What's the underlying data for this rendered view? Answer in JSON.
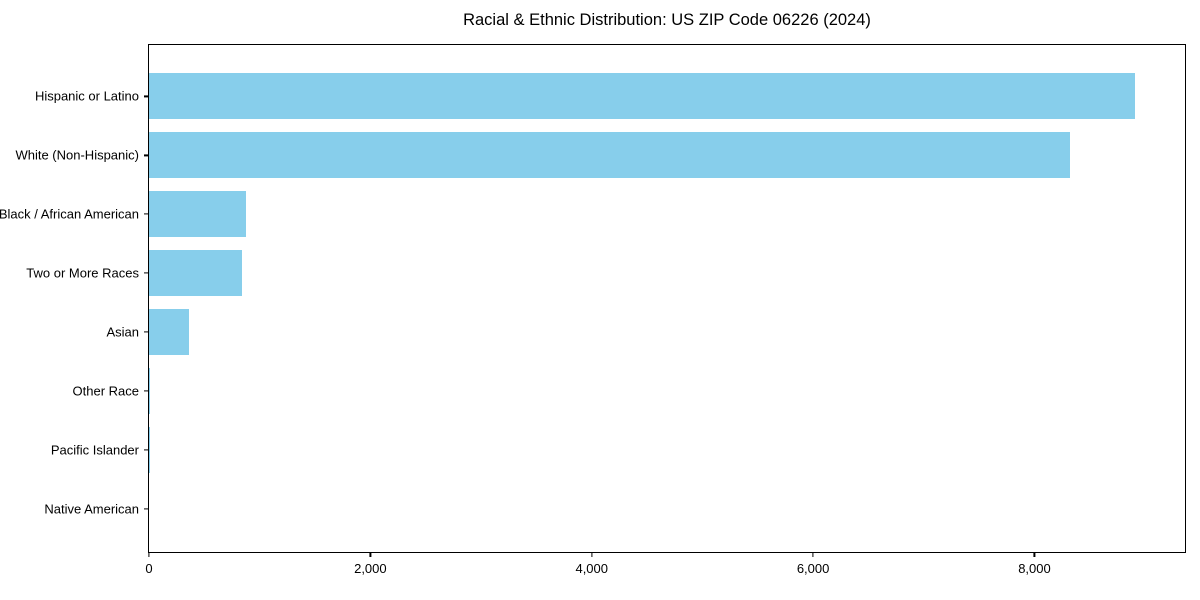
{
  "chart_data": {
    "type": "bar",
    "orientation": "horizontal",
    "title": "Racial & Ethnic Distribution: US ZIP Code 06226 (2024)",
    "categories": [
      "Hispanic or Latino",
      "White (Non-Hispanic)",
      "Black / African American",
      "Two or More Races",
      "Asian",
      "Other Race",
      "Pacific Islander",
      "Native American"
    ],
    "values": [
      8910,
      8325,
      880,
      840,
      365,
      10,
      5,
      0
    ],
    "xlabel": "",
    "ylabel": "",
    "xlim": [
      0,
      9360
    ],
    "xticks": {
      "values": [
        0,
        2000,
        4000,
        6000,
        8000
      ],
      "labels": [
        "0",
        "2,000",
        "4,000",
        "6,000",
        "8,000"
      ]
    },
    "bar_color": "#87CEEB",
    "axis_color": "#000000",
    "background_color": "#FFFFFF",
    "grid": false,
    "legend": null
  }
}
